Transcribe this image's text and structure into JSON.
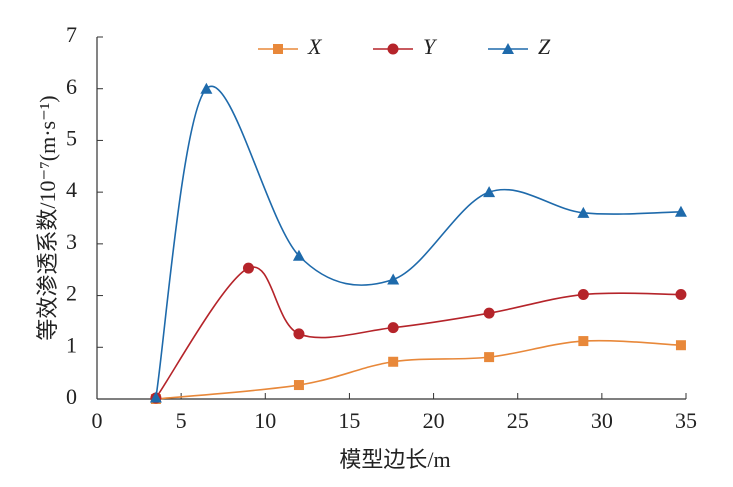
{
  "chart_data": {
    "type": "line",
    "x_label": "模型边长/m",
    "y_label": "等效渗透系数/10⁻⁷(m·s⁻¹)",
    "xlim": [
      0,
      35
    ],
    "xticks": [
      0,
      5,
      10,
      15,
      20,
      25,
      30,
      35
    ],
    "ylim": [
      0,
      7
    ],
    "yticks": [
      0,
      1,
      2,
      3,
      4,
      5,
      6,
      7
    ],
    "legend": "top",
    "series": [
      {
        "name": "X",
        "color": "#e8883a",
        "marker": "square",
        "x": [
          3.5,
          12.0,
          17.6,
          23.3,
          28.9,
          34.7
        ],
        "values": [
          0,
          0.27,
          0.72,
          0.81,
          1.12,
          1.04
        ]
      },
      {
        "name": "Y",
        "color": "#b5242a",
        "marker": "circle",
        "x": [
          3.5,
          9.0,
          12.0,
          17.6,
          23.3,
          28.9,
          34.7
        ],
        "values": [
          0.02,
          2.53,
          1.26,
          1.38,
          1.66,
          2.02,
          2.02
        ]
      },
      {
        "name": "Z",
        "color": "#1e6aab",
        "marker": "triangle",
        "x": [
          3.5,
          6.5,
          12.0,
          17.6,
          23.3,
          28.9,
          34.7
        ],
        "values": [
          0.03,
          6.0,
          2.77,
          2.31,
          4.0,
          3.6,
          3.62
        ]
      }
    ]
  }
}
